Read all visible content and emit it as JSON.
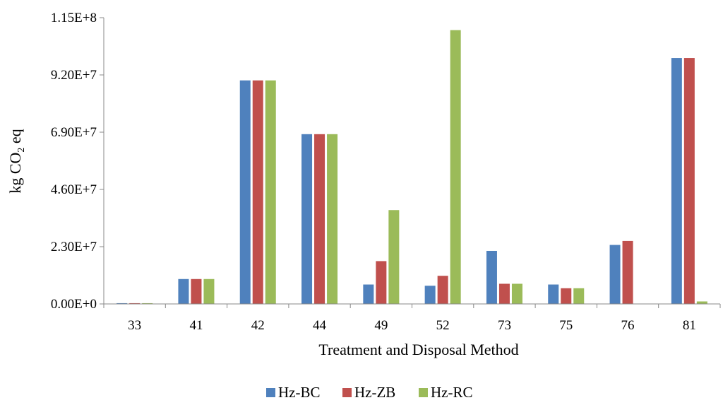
{
  "chart_data": {
    "type": "bar",
    "title": "",
    "xlabel": "Treatment and Disposal Method",
    "ylabel_main": "kg CO",
    "ylabel_sub": "2",
    "ylabel_tail": " eq",
    "categories": [
      "33",
      "41",
      "42",
      "44",
      "49",
      "52",
      "73",
      "75",
      "76",
      "81"
    ],
    "yticks": [
      0,
      23000000,
      46000000,
      69000000,
      92000000,
      115000000
    ],
    "ytick_labels": [
      "0.00E+0",
      "2.30E+7",
      "4.60E+7",
      "6.90E+7",
      "9.20E+7",
      "1.15E+8"
    ],
    "ylim": [
      0,
      115000000
    ],
    "grid": false,
    "legend_position": "bottom",
    "series": [
      {
        "name": "Hz-BC",
        "color": "#4F81BD",
        "values": [
          300000,
          10000000,
          89800000,
          68200000,
          7800000,
          7300000,
          21300000,
          7800000,
          23700000,
          98800000
        ]
      },
      {
        "name": "Hz-ZB",
        "color": "#C0504D",
        "values": [
          300000,
          10000000,
          89800000,
          68200000,
          17200000,
          11300000,
          8100000,
          6300000,
          25300000,
          98800000
        ]
      },
      {
        "name": "Hz-RC",
        "color": "#9BBB59",
        "values": [
          300000,
          10000000,
          89800000,
          68200000,
          37700000,
          110000000,
          8100000,
          6300000,
          0,
          1000000
        ]
      }
    ]
  }
}
